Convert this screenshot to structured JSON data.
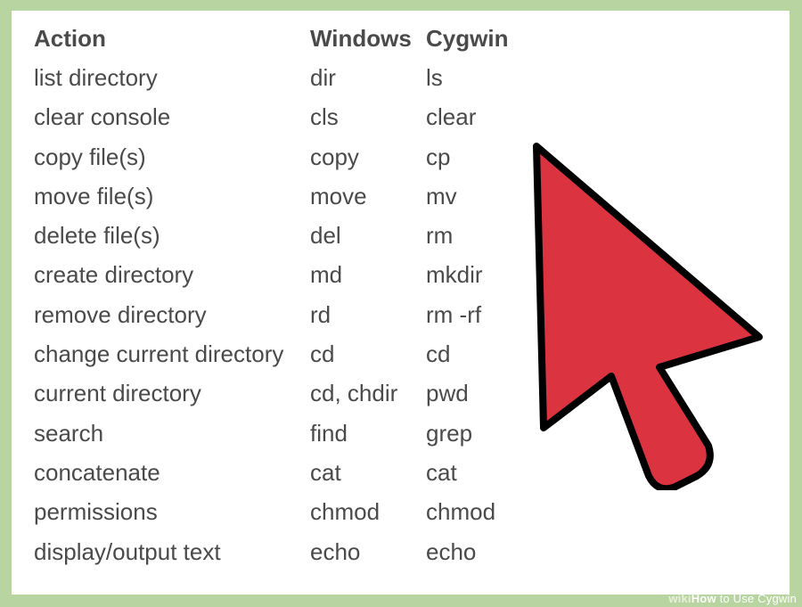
{
  "table": {
    "headers": [
      "Action",
      "Windows",
      "Cygwin"
    ],
    "rows": [
      [
        "list directory",
        "dir",
        "ls"
      ],
      [
        "clear console",
        "cls",
        "clear"
      ],
      [
        "copy file(s)",
        "copy",
        "cp"
      ],
      [
        "move file(s)",
        "move",
        "mv"
      ],
      [
        "delete file(s)",
        "del",
        "rm"
      ],
      [
        "create directory",
        "md",
        "mkdir"
      ],
      [
        "remove directory",
        "rd",
        "rm -rf"
      ],
      [
        "change current directory",
        "cd",
        "cd"
      ],
      [
        "current directory",
        "cd, chdir",
        "pwd"
      ],
      [
        "search",
        "find",
        "grep"
      ],
      [
        "concatenate",
        "cat",
        "cat"
      ],
      [
        "permissions",
        "chmod",
        "chmod"
      ],
      [
        "display/output text",
        "echo",
        "echo"
      ]
    ]
  },
  "cursor": {
    "icon": "arrow-cursor-icon",
    "fill": "#dc3340",
    "stroke": "#000000"
  },
  "watermark": {
    "wiki": "wiki",
    "how": "How",
    "rest": " to Use Cygwin"
  },
  "colors": {
    "border": "#b8d4a0",
    "panel": "#ffffff",
    "text": "#4a4a4a"
  }
}
